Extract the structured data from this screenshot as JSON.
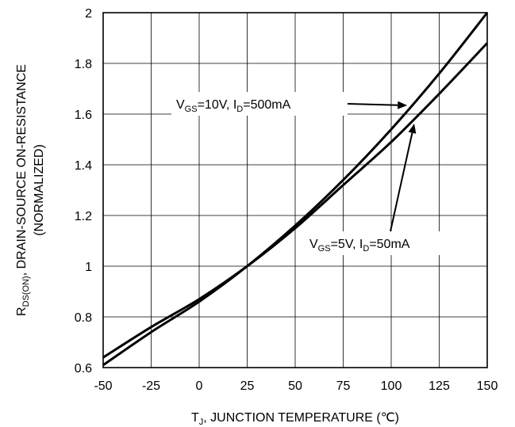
{
  "chart_data": {
    "type": "line",
    "xlabel": {
      "pre": "T",
      "sub": "J",
      "post": ", JUNCTION TEMPERATURE (℃)"
    },
    "ylabel": {
      "line1_pre": "R",
      "line1_sub": "DS(ON)",
      "line1_post": ", DRAIN-SOURCE ON-RESISTANCE",
      "line2": "(NORMALIZED)"
    },
    "xlim": [
      -50,
      150
    ],
    "ylim": [
      0.6,
      2.0
    ],
    "x_ticks": [
      -50,
      -25,
      0,
      25,
      50,
      75,
      100,
      125,
      150
    ],
    "y_ticks": [
      0.6,
      0.8,
      1,
      1.2,
      1.4,
      1.6,
      1.8,
      2
    ],
    "y_tick_labels": [
      "0.6",
      "0.8",
      "1",
      "1.2",
      "1.4",
      "1.6",
      "1.8",
      "2"
    ],
    "grid": true,
    "series": [
      {
        "name": "VGS=10V, ID=500mA",
        "x": [
          -50,
          -25,
          0,
          25,
          50,
          75,
          100,
          125,
          150
        ],
        "y": [
          0.61,
          0.74,
          0.86,
          1.0,
          1.16,
          1.34,
          1.54,
          1.76,
          2.0
        ]
      },
      {
        "name": "VGS=5V, ID=50mA",
        "x": [
          -50,
          -25,
          0,
          25,
          50,
          75,
          100,
          125,
          150
        ],
        "y": [
          0.64,
          0.76,
          0.87,
          1.0,
          1.15,
          1.32,
          1.49,
          1.68,
          1.88
        ]
      }
    ],
    "annotations": [
      {
        "series": 0,
        "v_pre": "V",
        "v_sub": "GS",
        "v_mid": "=10V, I",
        "i_sub": "D",
        "i_post": "=500mA",
        "target_x": 110
      },
      {
        "series": 1,
        "v_pre": "V",
        "v_sub": "GS",
        "v_mid": "=5V, I",
        "i_sub": "D",
        "i_post": "=50mA",
        "target_x": 112
      }
    ]
  }
}
